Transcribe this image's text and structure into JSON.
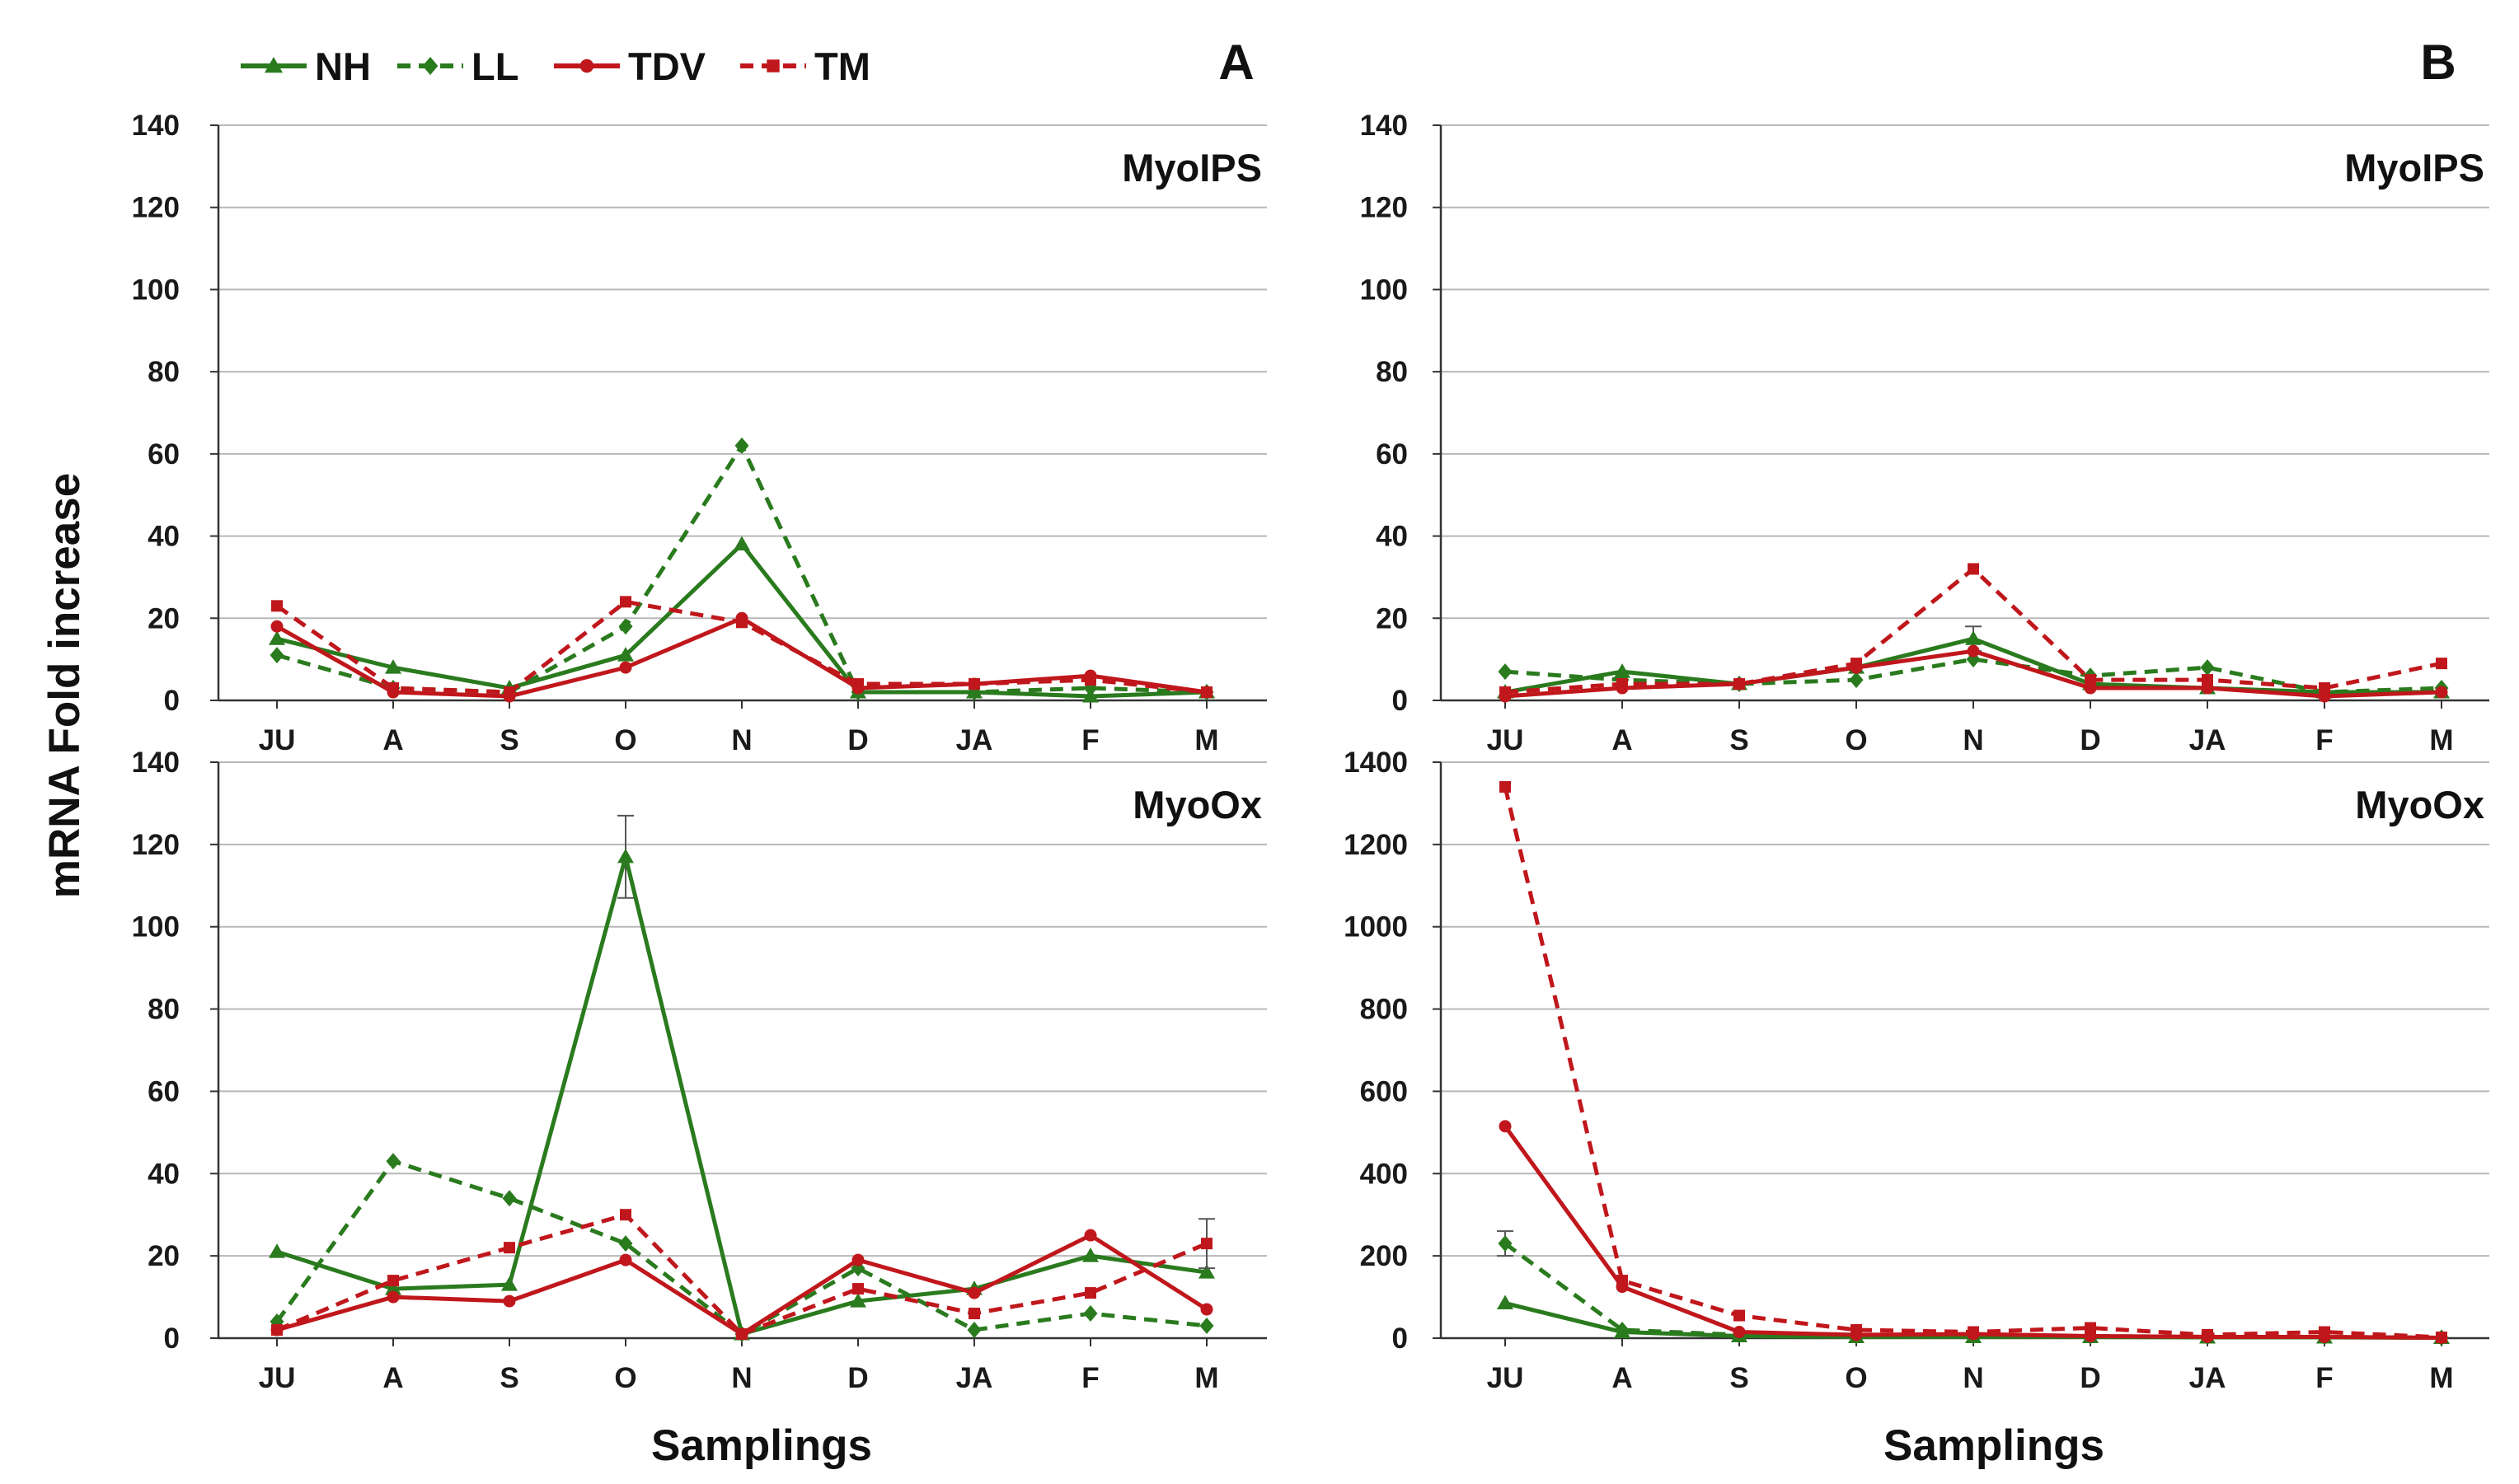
{
  "colors": {
    "green": "#2a7a1e",
    "red": "#c0171c",
    "grid": "#b8b8b8",
    "axis": "#333333"
  },
  "legend": [
    {
      "name": "NH",
      "color": "green",
      "dash": false,
      "marker": "triangle"
    },
    {
      "name": "LL",
      "color": "green",
      "dash": true,
      "marker": "diamond"
    },
    {
      "name": "TDV",
      "color": "red",
      "dash": false,
      "marker": "circle"
    },
    {
      "name": "TM",
      "color": "red",
      "dash": true,
      "marker": "square"
    }
  ],
  "panel_labels": {
    "A": "A",
    "B": "B"
  },
  "ylabel": "mRNA Fold increase",
  "xlabel": "Samplings",
  "chart_data": [
    {
      "type": "line",
      "panel": "A",
      "gene": "MyoIPS",
      "categories": [
        "JU",
        "A",
        "S",
        "O",
        "N",
        "D",
        "JA",
        "F",
        "M"
      ],
      "ylim": [
        0,
        140
      ],
      "yticks": [
        0,
        20,
        40,
        60,
        80,
        100,
        120,
        140
      ],
      "series": [
        {
          "name": "NH",
          "values": [
            15,
            8,
            3,
            11,
            38,
            2,
            2,
            1,
            2
          ]
        },
        {
          "name": "LL",
          "values": [
            11,
            3,
            2,
            18,
            62,
            2,
            2,
            3,
            2
          ]
        },
        {
          "name": "TDV",
          "values": [
            18,
            2,
            1,
            8,
            20,
            3,
            4,
            6,
            2
          ]
        },
        {
          "name": "TM",
          "values": [
            23,
            3,
            2,
            24,
            19,
            4,
            4,
            5,
            2
          ]
        }
      ]
    },
    {
      "type": "line",
      "panel": "A",
      "gene": "MyoOx",
      "categories": [
        "JU",
        "A",
        "S",
        "O",
        "N",
        "D",
        "JA",
        "F",
        "M"
      ],
      "ylim": [
        0,
        140
      ],
      "yticks": [
        0,
        20,
        40,
        60,
        80,
        100,
        120,
        140
      ],
      "series": [
        {
          "name": "NH",
          "values": [
            21,
            12,
            13,
            117,
            1,
            9,
            12,
            20,
            16
          ],
          "errors": [
            0,
            0,
            0,
            10,
            0,
            0,
            0,
            0,
            0
          ]
        },
        {
          "name": "LL",
          "values": [
            4,
            43,
            34,
            23,
            1,
            17,
            2,
            6,
            3
          ]
        },
        {
          "name": "TDV",
          "values": [
            2,
            10,
            9,
            19,
            1,
            19,
            11,
            25,
            7
          ]
        },
        {
          "name": "TM",
          "values": [
            2,
            14,
            22,
            30,
            1,
            12,
            6,
            11,
            23
          ],
          "errors": [
            0,
            0,
            0,
            0,
            0,
            0,
            0,
            0,
            6
          ]
        }
      ]
    },
    {
      "type": "line",
      "panel": "B",
      "gene": "MyoIPS",
      "categories": [
        "JU",
        "A",
        "S",
        "O",
        "N",
        "D",
        "JA",
        "F",
        "M"
      ],
      "ylim": [
        0,
        140
      ],
      "yticks": [
        0,
        20,
        40,
        60,
        80,
        100,
        120,
        140
      ],
      "series": [
        {
          "name": "NH",
          "values": [
            2,
            7,
            4,
            8,
            15,
            4,
            3,
            2,
            2
          ],
          "errors": [
            0,
            0,
            0,
            0,
            3,
            0,
            0,
            0,
            0
          ]
        },
        {
          "name": "LL",
          "values": [
            7,
            5,
            4,
            5,
            10,
            6,
            8,
            2,
            3
          ]
        },
        {
          "name": "TDV",
          "values": [
            1,
            3,
            4,
            8,
            12,
            3,
            3,
            1,
            2
          ]
        },
        {
          "name": "TM",
          "values": [
            2,
            4,
            4,
            9,
            32,
            5,
            5,
            3,
            9
          ]
        }
      ]
    },
    {
      "type": "line",
      "panel": "B",
      "gene": "MyoOx",
      "categories": [
        "JU",
        "A",
        "S",
        "O",
        "N",
        "D",
        "JA",
        "F",
        "M"
      ],
      "ylim": [
        0,
        1400
      ],
      "yticks": [
        0,
        200,
        400,
        600,
        800,
        1000,
        1200,
        1400
      ],
      "series": [
        {
          "name": "NH",
          "values": [
            85,
            15,
            5,
            3,
            3,
            3,
            2,
            2,
            1
          ]
        },
        {
          "name": "LL",
          "values": [
            230,
            20,
            8,
            5,
            5,
            5,
            3,
            3,
            1
          ],
          "errors": [
            30,
            0,
            0,
            0,
            0,
            0,
            0,
            0,
            0
          ]
        },
        {
          "name": "TDV",
          "values": [
            515,
            125,
            15,
            8,
            10,
            5,
            3,
            3,
            1
          ]
        },
        {
          "name": "TM",
          "values": [
            1340,
            140,
            55,
            20,
            15,
            25,
            8,
            15,
            2
          ]
        }
      ]
    }
  ]
}
